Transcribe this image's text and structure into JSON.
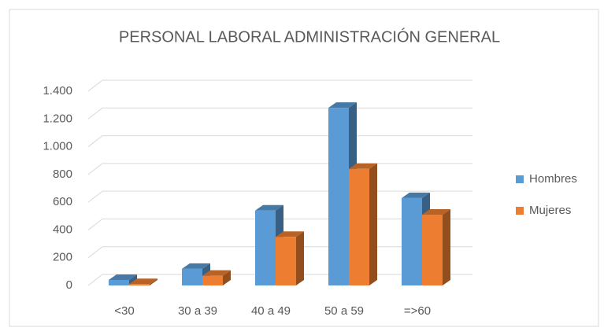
{
  "chart_data": {
    "type": "bar3d",
    "title": "PERSONAL LABORAL ADMINISTRACIÓN GENERAL",
    "categories": [
      "<30",
      "30 a 39",
      "40 a 49",
      "50 a 59",
      "=>60"
    ],
    "series": [
      {
        "name": "Hombres",
        "color": "#5b9bd5",
        "values": [
          40,
          120,
          540,
          1280,
          630
        ]
      },
      {
        "name": "Mujeres",
        "color": "#ed7d31",
        "values": [
          10,
          70,
          350,
          840,
          510
        ]
      }
    ],
    "ylim": [
      0,
      1400
    ],
    "yticks": [
      0,
      200,
      400,
      600,
      800,
      {
        "value": 1000,
        "label": "1.000"
      },
      {
        "value": 1200,
        "label": "1.200"
      },
      {
        "value": 1400,
        "label": "1.400"
      }
    ],
    "grid": true,
    "legend": "right"
  }
}
